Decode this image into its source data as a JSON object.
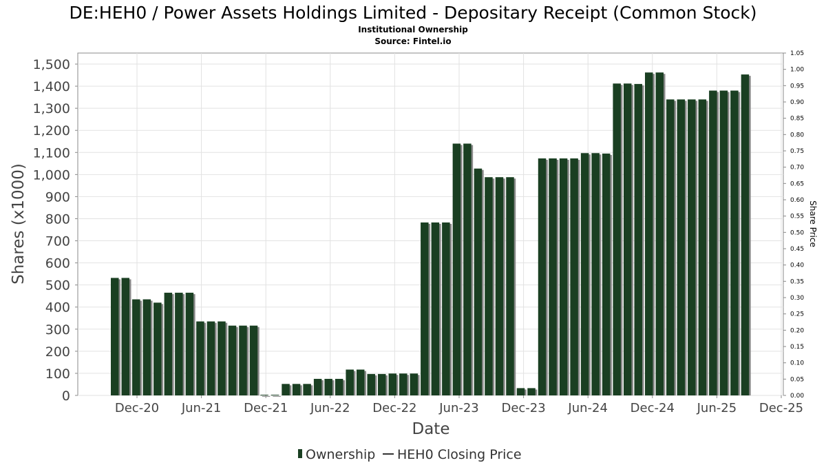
{
  "chart": {
    "title": "DE:HEH0 / Power Assets Holdings Limited - Depositary Receipt (Common Stock)",
    "subtitle_line1": "Institutional Ownership",
    "subtitle_line2": "Source: Fintel.io"
  },
  "legend": {
    "ownership_label": "Ownership",
    "price_label": "HEH0 Closing Price"
  },
  "chart_data": {
    "type": "bar",
    "title": "DE:HEH0 / Power Assets Holdings Limited - Depositary Receipt (Common Stock)",
    "xlabel": "Date",
    "ylabel": "Shares (x1000)",
    "y2label": "Share Price",
    "ylim": [
      0,
      1550
    ],
    "y2lim": [
      0,
      1.05
    ],
    "yticks": [
      "0",
      "100",
      "200",
      "300",
      "400",
      "500",
      "600",
      "700",
      "800",
      "900",
      "1,000",
      "1,100",
      "1,200",
      "1,300",
      "1,400",
      "1,500"
    ],
    "y2ticks": [
      "0.00",
      "0.05",
      "0.10",
      "0.15",
      "0.20",
      "0.25",
      "0.30",
      "0.35",
      "0.40",
      "0.45",
      "0.50",
      "0.55",
      "0.60",
      "0.65",
      "0.70",
      "0.75",
      "0.80",
      "0.85",
      "0.90",
      "0.95",
      "1.00",
      "1.05"
    ],
    "xticks": [
      "Dec-20",
      "Jun-21",
      "Dec-21",
      "Jun-22",
      "Dec-22",
      "Jun-23",
      "Dec-23",
      "Jun-24",
      "Dec-24",
      "Jun-25",
      "Dec-25"
    ],
    "grid": true,
    "legend_position": "bottom",
    "series": [
      {
        "name": "Ownership",
        "color": "#1a3f22",
        "values": [
          532,
          532,
          435,
          435,
          420,
          465,
          465,
          465,
          335,
          335,
          335,
          316,
          316,
          316,
          3,
          3,
          52,
          52,
          52,
          75,
          75,
          75,
          117,
          117,
          97,
          97,
          99,
          99,
          99,
          783,
          783,
          783,
          1140,
          1140,
          1027,
          988,
          988,
          988,
          33,
          33,
          1073,
          1073,
          1073,
          1073,
          1097,
          1097,
          1095,
          1412,
          1412,
          1410,
          1462,
          1462,
          1340,
          1340,
          1340,
          1340,
          1380,
          1380,
          1380,
          1453
        ]
      },
      {
        "name": "HEH0 Closing Price",
        "values": []
      }
    ]
  }
}
